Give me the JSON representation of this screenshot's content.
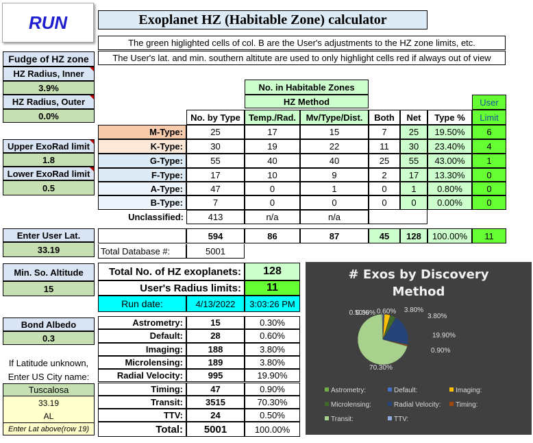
{
  "run_button": "RUN",
  "title": "Exoplanet HZ (Habitable Zone) calculator",
  "notes": [
    "The green higlighted cells of col. B are the User's adjustments to the HZ zone limits, etc.",
    "The User's lat. and min. southern altitute are used to only highlight cells red if always out of view"
  ],
  "left": {
    "fudge_title": "Fudge of HZ zone",
    "hz_inner_label": "HZ Radius, Inner",
    "hz_inner_value": "3.9%",
    "hz_outer_label": "HZ Radius, Outer",
    "hz_outer_value": "0.0%",
    "upper_exorad_label": "Upper ExoRad limit",
    "upper_exorad_value": "1.8",
    "lower_exorad_label": "Lower ExoRad limit",
    "lower_exorad_value": "0.5",
    "user_lat_label": "Enter User Lat.",
    "user_lat_value": "33.19",
    "min_alt_label": "Min. So. Altitude",
    "min_alt_value": "15",
    "albedo_label": "Bond Albedo",
    "albedo_value": "0.3",
    "lat_unknown_1": "If Latitude unknown,",
    "lat_unknown_2": "Enter US City name:",
    "city": "Tuscalosa",
    "city_lat": "33.19",
    "city_state": "AL",
    "enter_lat_note": "Enter Lat above(row 19)"
  },
  "table": {
    "group_header": "No. in Habitable Zones",
    "hz_method": "HZ Method",
    "user_limit_1": "User",
    "user_limit_2": "Limit",
    "headers": [
      "No. by Type",
      "Temp./Rad.",
      "Mv/Type/Dist.",
      "Both",
      "Net",
      "Type %"
    ],
    "rows": [
      {
        "label": "M-Type:",
        "by_type": "25",
        "temp_rad": "17",
        "mv": "15",
        "both": "7",
        "net": "25",
        "pct": "19.50%",
        "user": "6"
      },
      {
        "label": "K-Type:",
        "by_type": "30",
        "temp_rad": "19",
        "mv": "22",
        "both": "11",
        "net": "30",
        "pct": "23.40%",
        "user": "4"
      },
      {
        "label": "G-Type:",
        "by_type": "55",
        "temp_rad": "40",
        "mv": "40",
        "both": "25",
        "net": "55",
        "pct": "43.00%",
        "user": "1"
      },
      {
        "label": "F-Type:",
        "by_type": "17",
        "temp_rad": "10",
        "mv": "9",
        "both": "2",
        "net": "17",
        "pct": "13.30%",
        "user": "0"
      },
      {
        "label": "A-Type:",
        "by_type": "47",
        "temp_rad": "0",
        "mv": "1",
        "both": "0",
        "net": "1",
        "pct": "0.80%",
        "user": "0"
      },
      {
        "label": "B-Type:",
        "by_type": "7",
        "temp_rad": "0",
        "mv": "0",
        "both": "0",
        "net": "0",
        "pct": "0.00%",
        "user": "0"
      }
    ],
    "unclassified_label": "Unclassified:",
    "unclassified_count": "413",
    "unclassified_tr": "n/a",
    "unclassified_mv": "n/a",
    "totals": {
      "by_type": "594",
      "temp_rad": "86",
      "mv": "87",
      "both": "45",
      "net": "128",
      "pct": "100.00%",
      "user": "11"
    },
    "total_db_label": "Total Database #:",
    "total_db_value": "5001"
  },
  "summary": {
    "total_hz_label": "Total No. of HZ exoplanets:",
    "total_hz_value": "128",
    "radius_limits_label": "User's Radius limits:",
    "radius_limits_value": "11",
    "run_date_label": "Run date:",
    "run_date": "4/13/2022",
    "run_time": "3:03:26 PM"
  },
  "methods": {
    "rows": [
      {
        "label": "Astrometry:",
        "count": "15",
        "pct": "0.30%"
      },
      {
        "label": "Default:",
        "count": "28",
        "pct": "0.60%"
      },
      {
        "label": "Imaging:",
        "count": "188",
        "pct": "3.80%"
      },
      {
        "label": "Microlensing:",
        "count": "189",
        "pct": "3.80%"
      },
      {
        "label": "Radial Velocity:",
        "count": "995",
        "pct": "19.90%"
      },
      {
        "label": "Timing:",
        "count": "47",
        "pct": "0.90%"
      },
      {
        "label": "Transit:",
        "count": "3515",
        "pct": "70.30%"
      },
      {
        "label": "TTV:",
        "count": "24",
        "pct": "0.50%"
      }
    ],
    "total_label": "Total:",
    "total_count": "5001",
    "total_pct": "100.00%"
  },
  "chart_data": {
    "type": "pie",
    "title": "# Exos by Discovery Method",
    "title_lines": [
      "# Exos by Discovery",
      "Method"
    ],
    "categories": [
      "Astrometry:",
      "Default:",
      "Imaging:",
      "Microlensing:",
      "Radial Velocity:",
      "Timing:",
      "Transit:",
      "TTV:"
    ],
    "values": [
      0.3,
      0.6,
      3.8,
      3.8,
      19.9,
      0.9,
      70.3,
      0.5
    ],
    "data_labels": [
      "0.30%",
      "0.60%",
      "3.80%",
      "3.80%",
      "19.90%",
      "0.90%",
      "70.30%",
      "0.50%"
    ],
    "colors": [
      "#70ad47",
      "#4472c4",
      "#ffc000",
      "#43682b",
      "#264478",
      "#9e480e",
      "#a9d18e",
      "#8faadc"
    ],
    "legend_position": "bottom",
    "background": "#404040"
  }
}
